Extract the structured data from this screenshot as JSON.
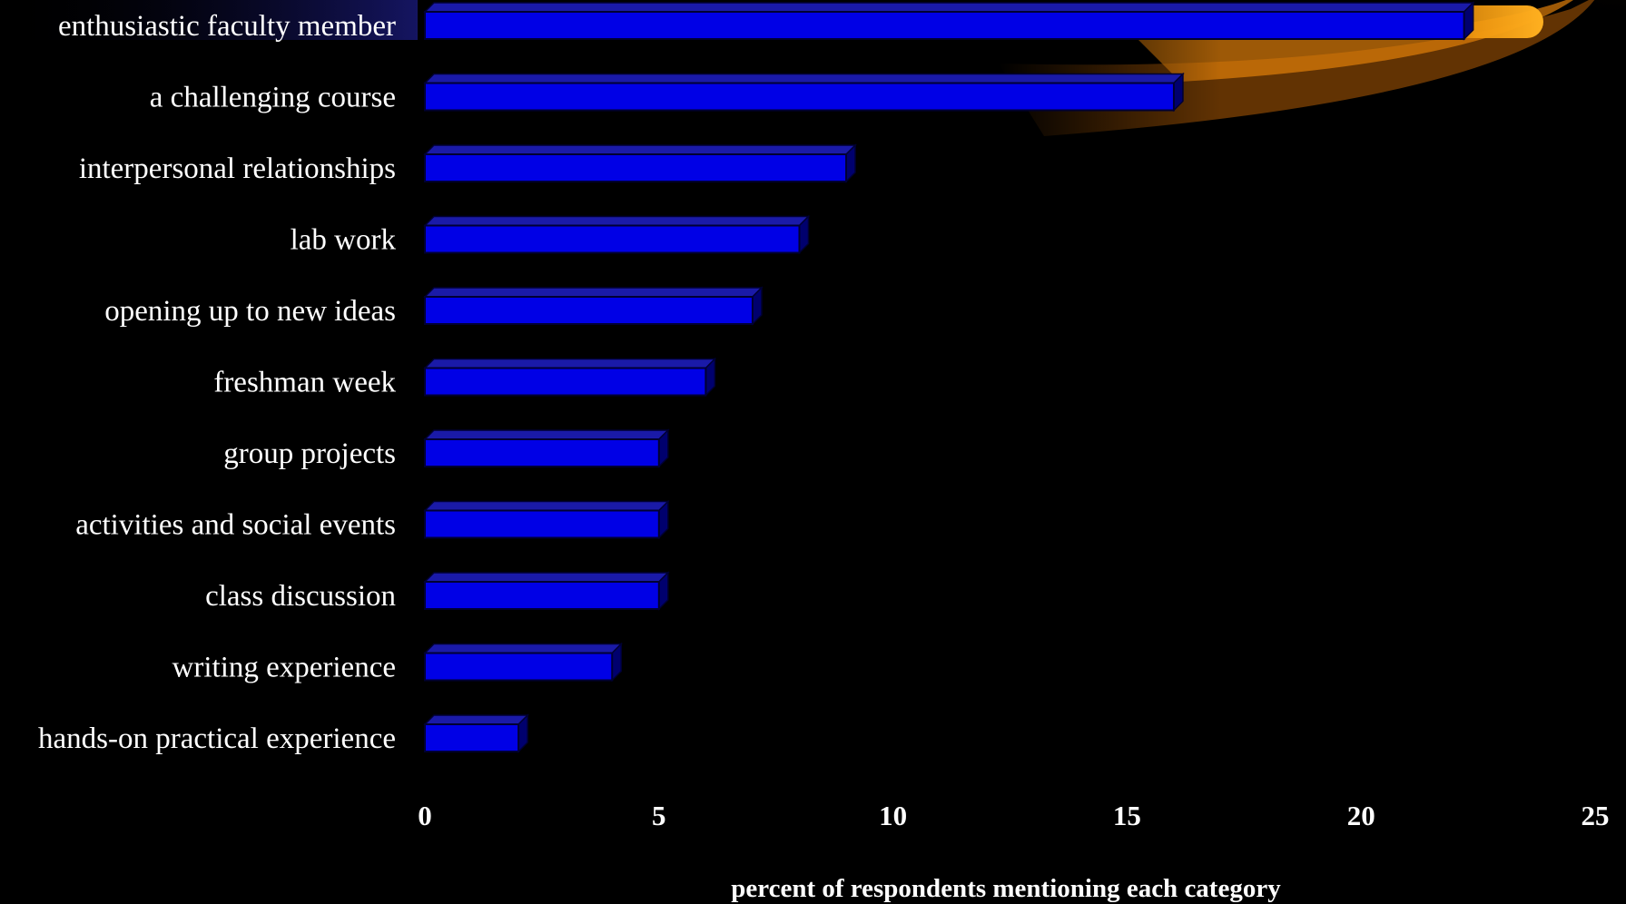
{
  "chart_data": {
    "type": "bar",
    "orientation": "horizontal",
    "categories": [
      "enthusiastic faculty member",
      "a challenging course",
      "interpersonal relationships",
      "lab work",
      "opening up to new ideas",
      "freshman week",
      "group projects",
      "activities and social events",
      "class discussion",
      "writing experience",
      "hands-on practical experience"
    ],
    "values": [
      22.2,
      16.0,
      9.0,
      8.0,
      7.0,
      6.0,
      5.0,
      5.0,
      5.0,
      4.0,
      2.0
    ],
    "xlabel": "percent of respondents mentioning each category",
    "ylabel": "",
    "xlim": [
      0,
      25
    ],
    "xticks": [
      0,
      5,
      10,
      15,
      20,
      25
    ],
    "grid": false,
    "legend": "none",
    "colors": {
      "background": "#000000",
      "bar_front": "#0000e6",
      "bar_top": "#1a1aa8",
      "bar_side": "#00006e",
      "bar_outline": "#000033",
      "text": "#ffffff",
      "glow_outer": "#3a1800",
      "glow_inner": "#ffaa1a"
    }
  }
}
